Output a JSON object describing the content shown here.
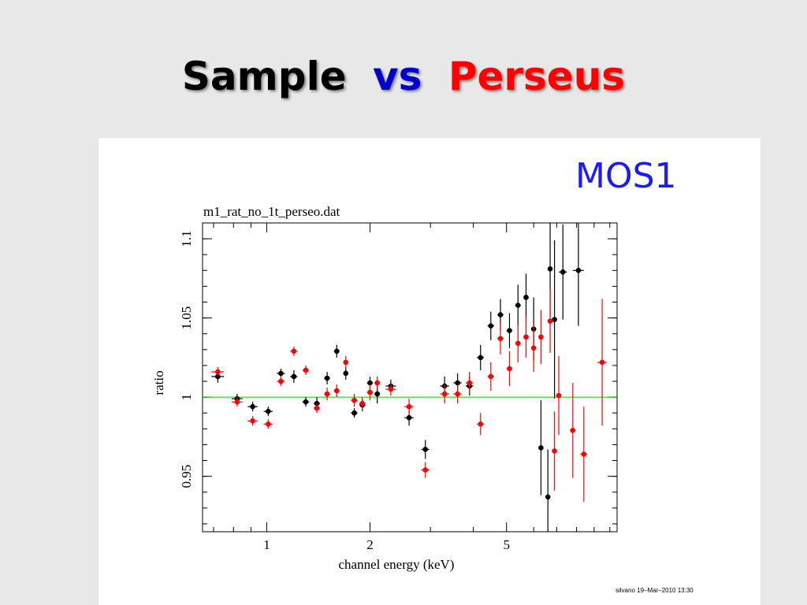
{
  "slide": {
    "title_part1": "Sample",
    "title_part2": "vs",
    "title_part3": "Perseus",
    "title_colors": {
      "part1": "#000000",
      "part2": "#0000cc",
      "part3": "#ff0000"
    },
    "mos_label": "MOS1",
    "mos_color": "#1a1aff",
    "footer": "silvano 19–Mar–2010 13:30"
  },
  "chart_data": {
    "type": "scatter",
    "title": "m1_rat_no_1t_perseo.dat",
    "xlabel": "channel energy (keV)",
    "ylabel": "ratio",
    "xscale": "log",
    "xlim": [
      0.65,
      10.5
    ],
    "ylim": [
      0.915,
      1.11
    ],
    "xticks": [
      1,
      2,
      5
    ],
    "xtick_labels": [
      "1",
      "2",
      "5"
    ],
    "yticks": [
      0.95,
      1,
      1.05,
      1.1
    ],
    "ytick_labels": [
      "0.95",
      "1",
      "1.05",
      "1.1"
    ],
    "reference_line": {
      "y": 1.0,
      "color": "#00cc00"
    },
    "series": [
      {
        "color": "#000000",
        "points": [
          {
            "x": 0.72,
            "y": 1.013,
            "xerr": 0.03,
            "yerr": 0.004
          },
          {
            "x": 0.82,
            "y": 0.999,
            "xerr": 0.03,
            "yerr": 0.003
          },
          {
            "x": 0.91,
            "y": 0.994,
            "xerr": 0.03,
            "yerr": 0.003
          },
          {
            "x": 1.01,
            "y": 0.991,
            "xerr": 0.03,
            "yerr": 0.003
          },
          {
            "x": 1.1,
            "y": 1.015,
            "xerr": 0.03,
            "yerr": 0.003
          },
          {
            "x": 1.2,
            "y": 1.013,
            "xerr": 0.03,
            "yerr": 0.004
          },
          {
            "x": 1.3,
            "y": 0.997,
            "xerr": 0.03,
            "yerr": 0.003
          },
          {
            "x": 1.4,
            "y": 0.996,
            "xerr": 0.03,
            "yerr": 0.004
          },
          {
            "x": 1.5,
            "y": 1.012,
            "xerr": 0.03,
            "yerr": 0.004
          },
          {
            "x": 1.6,
            "y": 1.029,
            "xerr": 0.03,
            "yerr": 0.004
          },
          {
            "x": 1.7,
            "y": 1.015,
            "xerr": 0.03,
            "yerr": 0.004
          },
          {
            "x": 1.8,
            "y": 0.99,
            "xerr": 0.04,
            "yerr": 0.003
          },
          {
            "x": 1.9,
            "y": 0.995,
            "xerr": 0.04,
            "yerr": 0.004
          },
          {
            "x": 2.0,
            "y": 1.009,
            "xerr": 0.04,
            "yerr": 0.004
          },
          {
            "x": 2.1,
            "y": 1.002,
            "xerr": 0.04,
            "yerr": 0.006
          },
          {
            "x": 2.3,
            "y": 1.007,
            "xerr": 0.08,
            "yerr": 0.004
          },
          {
            "x": 2.6,
            "y": 0.987,
            "xerr": 0.08,
            "yerr": 0.005
          },
          {
            "x": 2.9,
            "y": 0.967,
            "xerr": 0.08,
            "yerr": 0.006
          },
          {
            "x": 3.3,
            "y": 1.007,
            "xerr": 0.1,
            "yerr": 0.006
          },
          {
            "x": 3.6,
            "y": 1.009,
            "xerr": 0.1,
            "yerr": 0.006
          },
          {
            "x": 3.9,
            "y": 1.007,
            "xerr": 0.1,
            "yerr": 0.006
          },
          {
            "x": 4.2,
            "y": 1.025,
            "xerr": 0.1,
            "yerr": 0.008
          },
          {
            "x": 4.5,
            "y": 1.045,
            "xerr": 0.1,
            "yerr": 0.009
          },
          {
            "x": 4.8,
            "y": 1.052,
            "xerr": 0.1,
            "yerr": 0.01
          },
          {
            "x": 5.1,
            "y": 1.042,
            "xerr": 0.1,
            "yerr": 0.011
          },
          {
            "x": 5.4,
            "y": 1.058,
            "xerr": 0.1,
            "yerr": 0.013
          },
          {
            "x": 5.7,
            "y": 1.063,
            "xerr": 0.1,
            "yerr": 0.015
          },
          {
            "x": 6.0,
            "y": 1.043,
            "xerr": 0.1,
            "yerr": 0.02
          },
          {
            "x": 6.3,
            "y": 0.968,
            "xerr": 0.08,
            "yerr": 0.03
          },
          {
            "x": 6.6,
            "y": 0.937,
            "xerr": 0.08,
            "yerr": 0.03
          },
          {
            "x": 6.7,
            "y": 1.081,
            "xerr": 0.08,
            "yerr": 0.03
          },
          {
            "x": 6.9,
            "y": 1.049,
            "xerr": 0.08,
            "yerr": 0.05
          },
          {
            "x": 7.3,
            "y": 1.079,
            "xerr": 0.2,
            "yerr": 0.03
          },
          {
            "x": 8.1,
            "y": 1.08,
            "xerr": 0.3,
            "yerr": 0.035
          }
        ]
      },
      {
        "color": "#ff0000",
        "points": [
          {
            "x": 0.72,
            "y": 1.016,
            "xerr": 0.03,
            "yerr": 0.003
          },
          {
            "x": 0.82,
            "y": 0.997,
            "xerr": 0.03,
            "yerr": 0.003
          },
          {
            "x": 0.91,
            "y": 0.985,
            "xerr": 0.03,
            "yerr": 0.003
          },
          {
            "x": 1.01,
            "y": 0.983,
            "xerr": 0.03,
            "yerr": 0.003
          },
          {
            "x": 1.1,
            "y": 1.01,
            "xerr": 0.03,
            "yerr": 0.003
          },
          {
            "x": 1.2,
            "y": 1.029,
            "xerr": 0.03,
            "yerr": 0.003
          },
          {
            "x": 1.3,
            "y": 1.017,
            "xerr": 0.03,
            "yerr": 0.003
          },
          {
            "x": 1.4,
            "y": 0.993,
            "xerr": 0.03,
            "yerr": 0.003
          },
          {
            "x": 1.5,
            "y": 1.002,
            "xerr": 0.03,
            "yerr": 0.004
          },
          {
            "x": 1.6,
            "y": 1.004,
            "xerr": 0.03,
            "yerr": 0.004
          },
          {
            "x": 1.7,
            "y": 1.022,
            "xerr": 0.03,
            "yerr": 0.004
          },
          {
            "x": 1.8,
            "y": 0.998,
            "xerr": 0.04,
            "yerr": 0.004
          },
          {
            "x": 1.9,
            "y": 0.996,
            "xerr": 0.04,
            "yerr": 0.004
          },
          {
            "x": 2.0,
            "y": 1.003,
            "xerr": 0.04,
            "yerr": 0.005
          },
          {
            "x": 2.1,
            "y": 1.009,
            "xerr": 0.04,
            "yerr": 0.004
          },
          {
            "x": 2.3,
            "y": 1.005,
            "xerr": 0.08,
            "yerr": 0.004
          },
          {
            "x": 2.6,
            "y": 0.994,
            "xerr": 0.08,
            "yerr": 0.005
          },
          {
            "x": 2.9,
            "y": 0.954,
            "xerr": 0.08,
            "yerr": 0.005
          },
          {
            "x": 3.3,
            "y": 1.002,
            "xerr": 0.1,
            "yerr": 0.006
          },
          {
            "x": 3.6,
            "y": 1.002,
            "xerr": 0.1,
            "yerr": 0.006
          },
          {
            "x": 3.9,
            "y": 1.009,
            "xerr": 0.1,
            "yerr": 0.007
          },
          {
            "x": 4.2,
            "y": 0.983,
            "xerr": 0.1,
            "yerr": 0.007
          },
          {
            "x": 4.5,
            "y": 1.013,
            "xerr": 0.1,
            "yerr": 0.009
          },
          {
            "x": 4.8,
            "y": 1.037,
            "xerr": 0.1,
            "yerr": 0.01
          },
          {
            "x": 5.1,
            "y": 1.018,
            "xerr": 0.1,
            "yerr": 0.011
          },
          {
            "x": 5.4,
            "y": 1.034,
            "xerr": 0.1,
            "yerr": 0.012
          },
          {
            "x": 5.7,
            "y": 1.038,
            "xerr": 0.1,
            "yerr": 0.013
          },
          {
            "x": 6.0,
            "y": 1.031,
            "xerr": 0.1,
            "yerr": 0.015
          },
          {
            "x": 6.3,
            "y": 1.038,
            "xerr": 0.1,
            "yerr": 0.017
          },
          {
            "x": 6.7,
            "y": 1.048,
            "xerr": 0.08,
            "yerr": 0.02
          },
          {
            "x": 6.9,
            "y": 0.966,
            "xerr": 0.08,
            "yerr": 0.025
          },
          {
            "x": 7.1,
            "y": 1.001,
            "xerr": 0.1,
            "yerr": 0.025
          },
          {
            "x": 7.8,
            "y": 0.979,
            "xerr": 0.15,
            "yerr": 0.03
          },
          {
            "x": 8.4,
            "y": 0.964,
            "xerr": 0.2,
            "yerr": 0.03
          },
          {
            "x": 9.5,
            "y": 1.022,
            "xerr": 0.3,
            "yerr": 0.04
          }
        ]
      }
    ]
  }
}
